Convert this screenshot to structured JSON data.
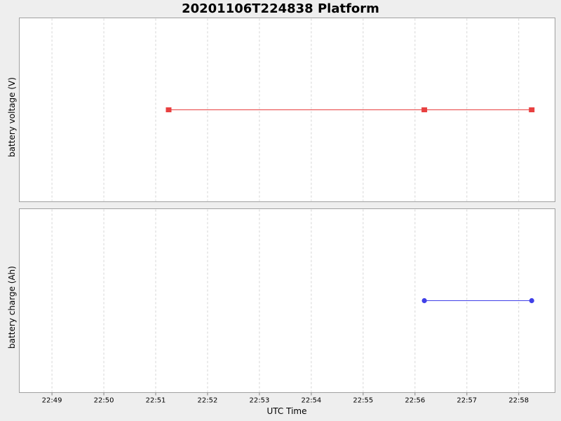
{
  "chart_data": {
    "type": "line",
    "title": "20201106T224838 Platform",
    "xlabel": "UTC Time",
    "x_ticks": [
      "22:49",
      "22:50",
      "22:51",
      "22:52",
      "22:53",
      "22:54",
      "22:55",
      "22:56",
      "22:57",
      "22:58"
    ],
    "x_tick_minutes": [
      49,
      50,
      51,
      52,
      53,
      54,
      55,
      56,
      57,
      58
    ],
    "xlim_minutes": [
      48.37,
      58.7
    ],
    "grid": true,
    "panels": [
      {
        "ylabel": "battery voltage (V)",
        "series": [
          {
            "color": "#e84040",
            "marker": "square",
            "x": [
              "22:51:15",
              "22:56:11",
              "22:58:15"
            ],
            "x_minutes": [
              51.25,
              56.18,
              58.25
            ],
            "y": [
              0,
              0,
              0
            ]
          }
        ]
      },
      {
        "ylabel": "battery charge (Ah)",
        "series": [
          {
            "color": "#4040e8",
            "marker": "circle",
            "x": [
              "22:56:11",
              "22:58:15"
            ],
            "x_minutes": [
              56.18,
              58.25
            ],
            "y": [
              0,
              0
            ]
          }
        ]
      }
    ]
  }
}
